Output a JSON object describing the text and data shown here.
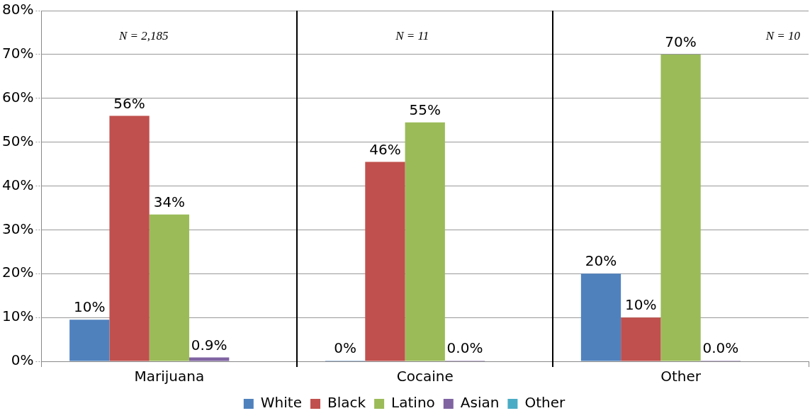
{
  "chart_data": {
    "type": "bar",
    "categories": [
      "Marijuana",
      "Cocaine",
      "Other"
    ],
    "series": [
      {
        "name": "White",
        "color": "#4f81bd",
        "values": [
          9.5,
          0,
          20
        ],
        "value_labels": [
          "10%",
          "0%",
          "20%"
        ]
      },
      {
        "name": "Black",
        "color": "#c0504d",
        "values": [
          56,
          45.5,
          10
        ],
        "value_labels": [
          "56%",
          "46%",
          "10%"
        ]
      },
      {
        "name": "Latino",
        "color": "#9bbb59",
        "values": [
          33.5,
          54.5,
          70
        ],
        "value_labels": [
          "34%",
          "55%",
          "70%"
        ]
      },
      {
        "name": "Asian",
        "color": "#8064a2",
        "values": [
          0.9,
          0,
          0
        ],
        "value_labels": [
          "0.9%",
          "0.0%",
          "0.0%"
        ]
      },
      {
        "name": "Other",
        "color": "#4bacc6",
        "values": [
          null,
          null,
          null
        ]
      }
    ],
    "ylim": [
      0,
      80
    ],
    "yticks": [
      {
        "value": 0,
        "label": "0%"
      },
      {
        "value": 10,
        "label": "10%"
      },
      {
        "value": 20,
        "label": "20%"
      },
      {
        "value": 30,
        "label": "30%"
      },
      {
        "value": 40,
        "label": "40%"
      },
      {
        "value": 50,
        "label": "50%"
      },
      {
        "value": 60,
        "label": "60%"
      },
      {
        "value": 70,
        "label": "70%"
      },
      {
        "value": 80,
        "label": "80%"
      }
    ],
    "grid": "y",
    "legend": "bottom",
    "annotations": [
      "N = 2,185",
      "N = 11",
      "N = 10"
    ]
  }
}
